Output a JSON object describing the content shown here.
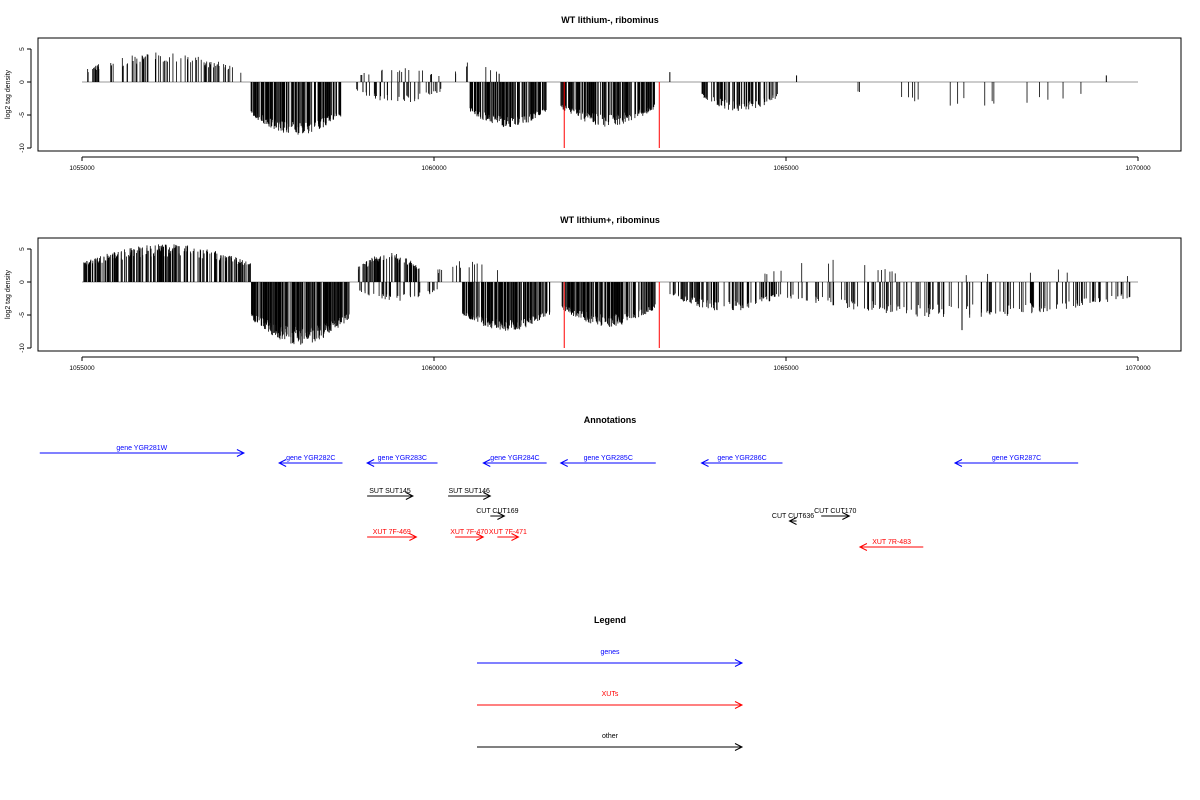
{
  "chart_data": [
    {
      "type": "bar",
      "title": "WT lithium-, ribominus",
      "xlabel": "",
      "ylabel": "log2 tag density",
      "xlim": [
        1055000,
        1070000
      ],
      "ylim": [
        -10,
        6.5
      ],
      "x_ticks": [
        1055000,
        1060000,
        1065000,
        1070000
      ],
      "x_tick_labels": [
        "1055000",
        "1060000",
        "1065000",
        "1070000"
      ],
      "y_ticks": [
        5,
        0,
        -5,
        -10
      ],
      "y_tick_labels": [
        "5",
        "0",
        "-5",
        "-10"
      ],
      "grid": false,
      "baseline": {
        "from": 1055000,
        "to": 1070000
      },
      "segments": [
        {
          "start": 1055000,
          "end": 1057300,
          "sign": 1,
          "min": 0.5,
          "max": 4.5,
          "count": 85,
          "seed": 11
        },
        {
          "start": 1057400,
          "end": 1058700,
          "sign": -1,
          "min": 3.5,
          "max": 8.0,
          "count": 190,
          "seed": 12
        },
        {
          "start": 1058900,
          "end": 1060100,
          "sign": 1,
          "min": 0.5,
          "max": 2.2,
          "count": 18,
          "seed": 13
        },
        {
          "start": 1058900,
          "end": 1060100,
          "sign": -1,
          "min": 0.5,
          "max": 3.2,
          "count": 40,
          "seed": 14
        },
        {
          "start": 1060300,
          "end": 1060950,
          "sign": 1,
          "min": 0.5,
          "max": 3.5,
          "count": 9,
          "seed": 15
        },
        {
          "start": 1060500,
          "end": 1061600,
          "sign": -1,
          "min": 3.0,
          "max": 7.0,
          "count": 150,
          "seed": 16
        },
        {
          "start": 1061800,
          "end": 1063150,
          "sign": -1,
          "min": 2.5,
          "max": 6.8,
          "count": 165,
          "seed": 17
        },
        {
          "start": 1063800,
          "end": 1064900,
          "sign": -1,
          "min": 1.0,
          "max": 4.5,
          "count": 90,
          "seed": 18
        },
        {
          "start": 1066000,
          "end": 1069300,
          "sign": -1,
          "min": 0.8,
          "max": 3.8,
          "count": 18,
          "seed": 19
        }
      ],
      "bars": [
        {
          "x": 1063350,
          "y": 1.5
        },
        {
          "x": 1065150,
          "y": 1.0
        },
        {
          "x": 1069550,
          "y": 1.0
        }
      ],
      "highlights": [
        {
          "x": 1061850,
          "y": -10.0
        },
        {
          "x": 1063200,
          "y": -10.0
        }
      ]
    },
    {
      "type": "bar",
      "title": "WT lithium+, ribominus",
      "xlabel": "",
      "ylabel": "log2 tag density",
      "xlim": [
        1055000,
        1070000
      ],
      "ylim": [
        -10,
        6.5
      ],
      "x_ticks": [
        1055000,
        1060000,
        1065000,
        1070000
      ],
      "x_tick_labels": [
        "1055000",
        "1060000",
        "1065000",
        "1070000"
      ],
      "y_ticks": [
        5,
        0,
        -5,
        -10
      ],
      "y_tick_labels": [
        "5",
        "0",
        "-5",
        "-10"
      ],
      "grid": false,
      "baseline": {
        "from": 1055000,
        "to": 1070000
      },
      "segments": [
        {
          "start": 1055000,
          "end": 1057400,
          "sign": 1,
          "min": 1.5,
          "max": 5.8,
          "count": 230,
          "seed": 21
        },
        {
          "start": 1057400,
          "end": 1058800,
          "sign": -1,
          "min": 3.5,
          "max": 9.5,
          "count": 220,
          "seed": 22
        },
        {
          "start": 1058900,
          "end": 1059800,
          "sign": 1,
          "min": 1.0,
          "max": 4.5,
          "count": 80,
          "seed": 23
        },
        {
          "start": 1058900,
          "end": 1060050,
          "sign": -1,
          "min": 0.5,
          "max": 3.0,
          "count": 40,
          "seed": 24
        },
        {
          "start": 1060000,
          "end": 1060950,
          "sign": 1,
          "min": 0.5,
          "max": 3.5,
          "count": 14,
          "seed": 25
        },
        {
          "start": 1060400,
          "end": 1061650,
          "sign": -1,
          "min": 3.5,
          "max": 7.5,
          "count": 180,
          "seed": 26
        },
        {
          "start": 1061800,
          "end": 1063150,
          "sign": -1,
          "min": 2.5,
          "max": 6.8,
          "count": 170,
          "seed": 27
        },
        {
          "start": 1063350,
          "end": 1064950,
          "sign": -1,
          "min": 0.8,
          "max": 4.5,
          "count": 110,
          "seed": 28
        },
        {
          "start": 1064700,
          "end": 1066600,
          "sign": 1,
          "min": 0.5,
          "max": 3.5,
          "count": 14,
          "seed": 29
        },
        {
          "start": 1065000,
          "end": 1069900,
          "sign": -1,
          "min": 0.8,
          "max": 5.5,
          "count": 170,
          "seed": 30
        },
        {
          "start": 1067500,
          "end": 1069900,
          "sign": 1,
          "min": 0.5,
          "max": 2.0,
          "count": 6,
          "seed": 31
        }
      ],
      "bars": [
        {
          "x": 1067500,
          "y": -7.3
        }
      ],
      "highlights": [
        {
          "x": 1061850,
          "y": -10.0
        },
        {
          "x": 1063200,
          "y": -10.0
        }
      ]
    }
  ],
  "annotations": {
    "title": "Annotations",
    "xlim": [
      1055000,
      1070000
    ],
    "colors": {
      "gene": "#0000ff",
      "xut": "#ff0000",
      "other": "#000000"
    },
    "items": [
      {
        "label": "gene YGR281W",
        "start": 1054400,
        "end": 1057300,
        "strand": "+",
        "kind": "gene",
        "row": 0
      },
      {
        "label": "gene YGR282C",
        "start": 1057800,
        "end": 1058700,
        "strand": "-",
        "kind": "gene",
        "row": 1
      },
      {
        "label": "gene YGR283C",
        "start": 1059050,
        "end": 1060050,
        "strand": "-",
        "kind": "gene",
        "row": 1
      },
      {
        "label": "gene YGR284C",
        "start": 1060700,
        "end": 1061600,
        "strand": "-",
        "kind": "gene",
        "row": 1
      },
      {
        "label": "gene YGR285C",
        "start": 1061800,
        "end": 1063150,
        "strand": "-",
        "kind": "gene",
        "row": 1
      },
      {
        "label": "gene YGR286C",
        "start": 1063800,
        "end": 1064950,
        "strand": "-",
        "kind": "gene",
        "row": 1
      },
      {
        "label": "gene YGR287C",
        "start": 1067400,
        "end": 1069150,
        "strand": "-",
        "kind": "gene",
        "row": 1
      },
      {
        "label": "SUT SUT145",
        "start": 1059050,
        "end": 1059700,
        "strand": "+",
        "kind": "other",
        "row": 2
      },
      {
        "label": "SUT SUT146",
        "start": 1060200,
        "end": 1060800,
        "strand": "+",
        "kind": "other",
        "row": 2
      },
      {
        "label": "CUT CUT169",
        "start": 1060800,
        "end": 1061000,
        "strand": "+",
        "kind": "other",
        "row": 3
      },
      {
        "label": "CUT CUT170",
        "start": 1065500,
        "end": 1065900,
        "strand": "+",
        "kind": "other",
        "row": 3
      },
      {
        "label": "CUT CUT636",
        "start": 1065050,
        "end": 1065150,
        "strand": "-",
        "kind": "other",
        "row": 4
      },
      {
        "label": "XUT 7F-469",
        "start": 1059050,
        "end": 1059750,
        "strand": "+",
        "kind": "xut",
        "row": 5
      },
      {
        "label": "XUT 7F-470",
        "start": 1060300,
        "end": 1060700,
        "strand": "+",
        "kind": "xut",
        "row": 5
      },
      {
        "label": "XUT 7F-471",
        "start": 1060900,
        "end": 1061200,
        "strand": "+",
        "kind": "xut",
        "row": 5
      },
      {
        "label": "XUT 7R-483",
        "start": 1066050,
        "end": 1066950,
        "strand": "-",
        "kind": "xut",
        "row": 6
      }
    ]
  },
  "legend": {
    "title": "Legend",
    "entries": [
      {
        "label": "genes",
        "kind": "gene"
      },
      {
        "label": "XUTs",
        "kind": "xut"
      },
      {
        "label": "other",
        "kind": "other"
      }
    ]
  }
}
